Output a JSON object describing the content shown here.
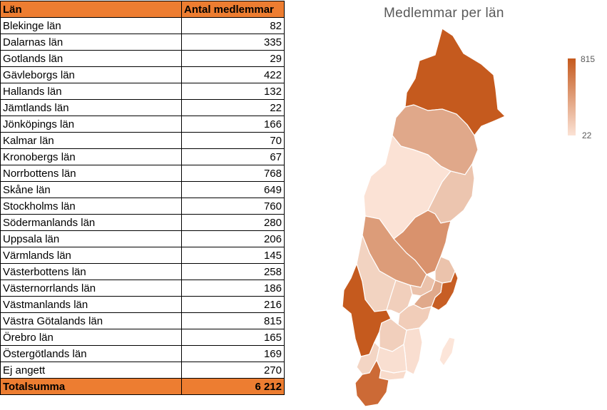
{
  "table": {
    "header": {
      "name": "Län",
      "value": "Antal medlemmar"
    },
    "rows": [
      {
        "name": "Blekinge län",
        "value": "82"
      },
      {
        "name": "Dalarnas län",
        "value": "335"
      },
      {
        "name": "Gotlands län",
        "value": "29"
      },
      {
        "name": "Gävleborgs län",
        "value": "422"
      },
      {
        "name": "Hallands län",
        "value": "132"
      },
      {
        "name": "Jämtlands län",
        "value": "22"
      },
      {
        "name": "Jönköpings län",
        "value": "166"
      },
      {
        "name": "Kalmar län",
        "value": "70"
      },
      {
        "name": "Kronobergs län",
        "value": "67"
      },
      {
        "name": "Norrbottens län",
        "value": "768"
      },
      {
        "name": "Skåne län",
        "value": "649"
      },
      {
        "name": "Stockholms län",
        "value": "760"
      },
      {
        "name": "Södermanlands län",
        "value": "280"
      },
      {
        "name": "Uppsala län",
        "value": "206"
      },
      {
        "name": "Värmlands län",
        "value": "145"
      },
      {
        "name": "Västerbottens län",
        "value": "258"
      },
      {
        "name": "Västernorrlands län",
        "value": "186"
      },
      {
        "name": "Västmanlands län",
        "value": "216"
      },
      {
        "name": "Västra Götalands län",
        "value": "815"
      },
      {
        "name": "Örebro län",
        "value": "165"
      },
      {
        "name": "Östergötlands län",
        "value": "169"
      },
      {
        "name": "Ej angett",
        "value": "270"
      }
    ],
    "total": {
      "name": "Totalsumma",
      "value": "6 212"
    }
  },
  "map": {
    "title": "Medlemmar per län",
    "legend_max": "815",
    "legend_min": "22",
    "color_high": "#C55A1E",
    "color_low": "#FBE2D5"
  }
}
